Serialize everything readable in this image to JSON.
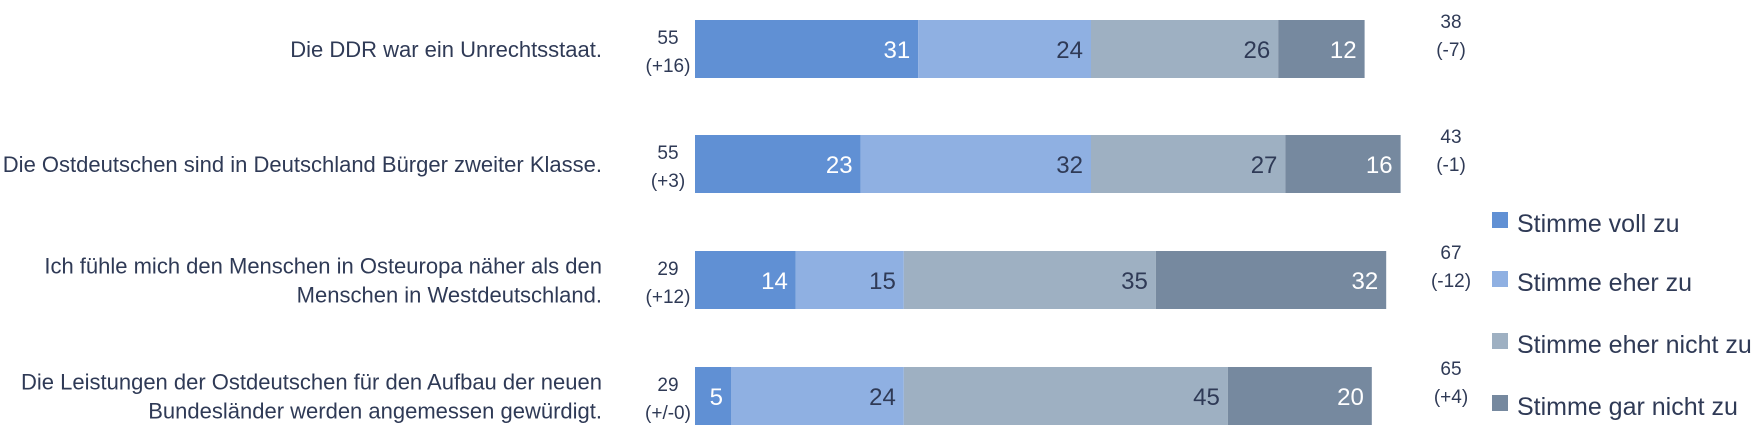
{
  "chart_data": {
    "type": "bar",
    "orientation": "horizontal",
    "stacked": true,
    "categories": [
      [
        "Die DDR war ein Unrechtsstaat."
      ],
      [
        "Die Ostdeutschen sind in Deutschland Bürger zweiter Klasse."
      ],
      [
        "Ich fühle mich den Menschen in Osteuropa näher als den",
        "Menschen in Westdeutschland."
      ],
      [
        "Die Leistungen der Ostdeutschen für den Aufbau der neuen",
        "Bundesländer werden angemessen gewürdigt."
      ]
    ],
    "series": [
      {
        "name": "Stimme voll zu",
        "color": "#6090d4",
        "label_color": "#ffffff",
        "values": [
          31,
          23,
          14,
          5
        ]
      },
      {
        "name": "Stimme eher zu",
        "color": "#8fb0e2",
        "label_color": "#2f3a56",
        "values": [
          24,
          32,
          15,
          24
        ]
      },
      {
        "name": "Stimme eher nicht zu",
        "color": "#9eb0c2",
        "label_color": "#2f3a56",
        "values": [
          26,
          27,
          35,
          45
        ]
      },
      {
        "name": "Stimme gar nicht zu",
        "color": "#76899f",
        "label_color": "#ffffff",
        "values": [
          12,
          16,
          32,
          20
        ]
      }
    ],
    "agree_totals": [
      {
        "value": "55",
        "change": "(+16)"
      },
      {
        "value": "55",
        "change": "(+3)"
      },
      {
        "value": "29",
        "change": "(+12)"
      },
      {
        "value": "29",
        "change": "(+/-0)"
      }
    ],
    "disagree_totals": [
      {
        "value": "38",
        "change": "(-7)"
      },
      {
        "value": "43",
        "change": "(-1)"
      },
      {
        "value": "67",
        "change": "(-12)"
      },
      {
        "value": "65",
        "change": "(+4)"
      }
    ],
    "legend_position": "right",
    "grid": false
  }
}
